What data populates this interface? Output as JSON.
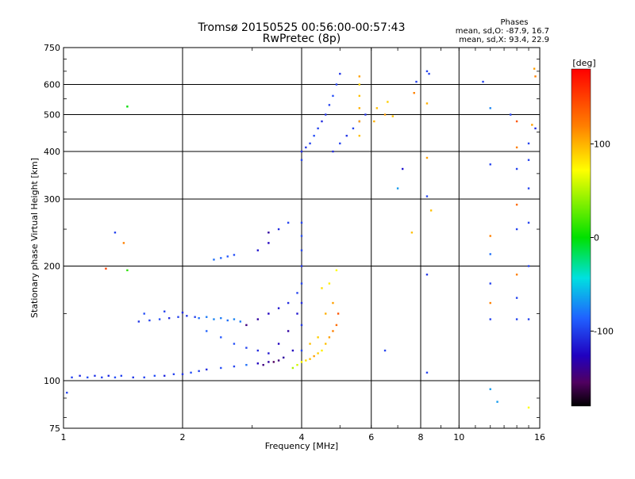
{
  "chart_data": {
    "type": "scatter",
    "title": "Tromsø 20150525 00:56:00-00:57:43",
    "subtitle": "RwPretec (8p)",
    "xlabel": "Frequency [MHz]",
    "ylabel": "Stationary phase Virtual Height [km]",
    "x_scale": "log",
    "y_scale": "log",
    "xlim": [
      1,
      16
    ],
    "ylim": [
      75,
      750
    ],
    "x_ticks": [
      1,
      2,
      4,
      6,
      8,
      10,
      16
    ],
    "y_ticks": [
      75,
      100,
      200,
      300,
      400,
      500,
      600,
      750
    ],
    "grid": true,
    "stats": {
      "heading": "Phases",
      "line_o": "mean, sd,O: -87.9, 16.7",
      "line_x": "mean, sd,X:  93.4, 22.9"
    },
    "colorbar": {
      "label": "[deg]",
      "range": [
        -180,
        180
      ],
      "ticks": [
        100,
        0,
        -100
      ],
      "position": "right"
    },
    "series": [
      {
        "color_by": "phase_deg",
        "points": [
          [
            1.05,
            102,
            -100
          ],
          [
            1.1,
            103,
            -110
          ],
          [
            1.15,
            102,
            -95
          ],
          [
            1.2,
            103,
            -105
          ],
          [
            1.25,
            102,
            -100
          ],
          [
            1.3,
            103,
            -110
          ],
          [
            1.35,
            102,
            -95
          ],
          [
            1.4,
            103,
            -100
          ],
          [
            1.5,
            102,
            -105
          ],
          [
            1.6,
            102,
            -100
          ],
          [
            1.7,
            103,
            -95
          ],
          [
            1.8,
            103,
            -110
          ],
          [
            1.9,
            104,
            -100
          ],
          [
            2.0,
            104,
            -105
          ],
          [
            2.1,
            105,
            -95
          ],
          [
            2.2,
            106,
            -100
          ],
          [
            2.3,
            107,
            -110
          ],
          [
            2.5,
            108,
            -95
          ],
          [
            2.7,
            109,
            -100
          ],
          [
            2.9,
            110,
            -80
          ],
          [
            3.1,
            111,
            -130
          ],
          [
            3.3,
            112,
            -140
          ],
          [
            3.5,
            113,
            -150
          ],
          [
            1.02,
            93,
            -100
          ],
          [
            1.35,
            245,
            -100
          ],
          [
            1.42,
            230,
            120
          ],
          [
            1.28,
            197,
            150
          ],
          [
            1.45,
            195,
            30
          ],
          [
            1.45,
            525,
            20
          ],
          [
            1.55,
            143,
            -105
          ],
          [
            1.65,
            144,
            -100
          ],
          [
            1.75,
            145,
            -95
          ],
          [
            1.85,
            146,
            -110
          ],
          [
            1.95,
            147,
            -100
          ],
          [
            2.05,
            148,
            -105
          ],
          [
            2.15,
            147,
            -100
          ],
          [
            1.6,
            150,
            -95
          ],
          [
            1.8,
            152,
            -100
          ],
          [
            2.0,
            151,
            -110
          ],
          [
            2.2,
            146,
            -80
          ],
          [
            2.3,
            147,
            -75
          ],
          [
            2.4,
            145,
            -70
          ],
          [
            2.5,
            146,
            -75
          ],
          [
            2.6,
            144,
            -80
          ],
          [
            2.7,
            145,
            -70
          ],
          [
            2.8,
            143,
            -75
          ],
          [
            2.3,
            135,
            -85
          ],
          [
            2.5,
            130,
            -90
          ],
          [
            2.7,
            125,
            -95
          ],
          [
            2.9,
            122,
            -100
          ],
          [
            3.1,
            120,
            -110
          ],
          [
            3.3,
            118,
            -120
          ],
          [
            3.5,
            125,
            -130
          ],
          [
            3.7,
            135,
            -140
          ],
          [
            3.9,
            150,
            -120
          ],
          [
            2.9,
            140,
            -150
          ],
          [
            3.1,
            145,
            -140
          ],
          [
            3.3,
            150,
            -130
          ],
          [
            3.5,
            155,
            -120
          ],
          [
            3.7,
            160,
            -110
          ],
          [
            3.9,
            170,
            -100
          ],
          [
            3.2,
            110,
            -150
          ],
          [
            3.4,
            112,
            -160
          ],
          [
            3.6,
            115,
            -140
          ],
          [
            3.8,
            120,
            -130
          ],
          [
            2.4,
            208,
            -80
          ],
          [
            2.5,
            210,
            -85
          ],
          [
            2.6,
            212,
            -90
          ],
          [
            2.7,
            214,
            -95
          ],
          [
            3.1,
            220,
            -120
          ],
          [
            3.3,
            230,
            -130
          ],
          [
            3.5,
            250,
            -110
          ],
          [
            3.7,
            260,
            -100
          ],
          [
            3.3,
            245,
            -140
          ],
          [
            4.0,
            120,
            -100
          ],
          [
            4.0,
            140,
            -105
          ],
          [
            4.0,
            160,
            -110
          ],
          [
            4.0,
            180,
            -100
          ],
          [
            4.0,
            200,
            -105
          ],
          [
            4.0,
            220,
            -100
          ],
          [
            4.0,
            240,
            -95
          ],
          [
            4.0,
            260,
            -100
          ],
          [
            3.8,
            108,
            60
          ],
          [
            3.9,
            110,
            70
          ],
          [
            4.0,
            112,
            80
          ],
          [
            4.1,
            113,
            90
          ],
          [
            4.2,
            114,
            100
          ],
          [
            4.3,
            116,
            110
          ],
          [
            4.4,
            118,
            95
          ],
          [
            4.5,
            120,
            85
          ],
          [
            4.6,
            125,
            100
          ],
          [
            4.7,
            130,
            110
          ],
          [
            4.8,
            135,
            120
          ],
          [
            4.9,
            140,
            130
          ],
          [
            4.95,
            150,
            140
          ],
          [
            4.2,
            125,
            100
          ],
          [
            4.4,
            130,
            95
          ],
          [
            4.6,
            150,
            105
          ],
          [
            4.8,
            160,
            110
          ],
          [
            4.5,
            175,
            90
          ],
          [
            4.7,
            180,
            85
          ],
          [
            4.9,
            195,
            80
          ],
          [
            4.0,
            380,
            -100
          ],
          [
            4.0,
            400,
            -110
          ],
          [
            4.1,
            410,
            -105
          ],
          [
            4.2,
            420,
            -100
          ],
          [
            4.3,
            440,
            -95
          ],
          [
            4.4,
            460,
            -100
          ],
          [
            4.5,
            480,
            -110
          ],
          [
            4.6,
            500,
            -105
          ],
          [
            4.7,
            530,
            -100
          ],
          [
            4.8,
            560,
            -95
          ],
          [
            4.9,
            600,
            -100
          ],
          [
            5.0,
            640,
            -105
          ],
          [
            4.8,
            400,
            -110
          ],
          [
            5.0,
            420,
            -100
          ],
          [
            5.2,
            440,
            -105
          ],
          [
            5.4,
            460,
            -100
          ],
          [
            5.6,
            480,
            -110
          ],
          [
            5.8,
            500,
            -105
          ],
          [
            5.6,
            440,
            100
          ],
          [
            5.6,
            480,
            110
          ],
          [
            5.6,
            520,
            105
          ],
          [
            5.6,
            560,
            100
          ],
          [
            5.6,
            600,
            95
          ],
          [
            5.6,
            630,
            110
          ],
          [
            6.1,
            480,
            105
          ],
          [
            6.2,
            520,
            100
          ],
          [
            6.5,
            500,
            110
          ],
          [
            6.6,
            540,
            95
          ],
          [
            6.8,
            495,
            100
          ],
          [
            6.5,
            120,
            -100
          ],
          [
            7.6,
            245,
            100
          ],
          [
            7.2,
            360,
            -120
          ],
          [
            7.0,
            320,
            -60
          ],
          [
            8.3,
            305,
            -100
          ],
          [
            8.5,
            280,
            100
          ],
          [
            8.3,
            385,
            110
          ],
          [
            8.3,
            190,
            -105
          ],
          [
            8.3,
            105,
            -100
          ],
          [
            8.3,
            535,
            105
          ],
          [
            8.3,
            650,
            -100
          ],
          [
            8.4,
            640,
            -100
          ],
          [
            7.7,
            570,
            120
          ],
          [
            7.8,
            610,
            -100
          ],
          [
            11.5,
            610,
            -100
          ],
          [
            12.0,
            520,
            -70
          ],
          [
            12.0,
            370,
            -100
          ],
          [
            12.0,
            240,
            120
          ],
          [
            12.0,
            215,
            -80
          ],
          [
            12.0,
            180,
            -100
          ],
          [
            12.0,
            160,
            120
          ],
          [
            12.0,
            145,
            -100
          ],
          [
            12.0,
            95,
            -60
          ],
          [
            12.5,
            88,
            -60
          ],
          [
            13.5,
            500,
            -100
          ],
          [
            14.0,
            480,
            140
          ],
          [
            14.0,
            410,
            120
          ],
          [
            14.0,
            360,
            -100
          ],
          [
            14.0,
            290,
            130
          ],
          [
            14.0,
            250,
            -100
          ],
          [
            14.0,
            190,
            120
          ],
          [
            14.0,
            165,
            -100
          ],
          [
            14.0,
            145,
            -100
          ],
          [
            15.0,
            420,
            -100
          ],
          [
            15.0,
            380,
            -100
          ],
          [
            15.0,
            320,
            -100
          ],
          [
            15.0,
            260,
            -100
          ],
          [
            15.0,
            200,
            -100
          ],
          [
            15.0,
            145,
            -100
          ],
          [
            15.3,
            470,
            110
          ],
          [
            15.5,
            660,
            110
          ],
          [
            15.6,
            460,
            -110
          ],
          [
            15.6,
            630,
            120
          ],
          [
            15.0,
            85,
            80
          ]
        ]
      }
    ]
  }
}
